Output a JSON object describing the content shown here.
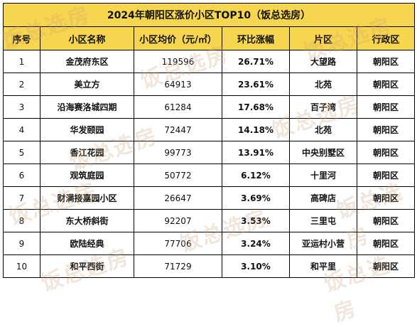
{
  "title": "2024年朝阳区涨价小区TOP10（饭总选房）",
  "headers": [
    "序号",
    "小区名称",
    "小区均价（元/㎡）",
    "环比涨幅",
    "片区",
    "行政区"
  ],
  "rows": [
    {
      "rank": "1",
      "name": "金茂府东区",
      "price": "119596",
      "change": "26.71%",
      "area": "大望路",
      "district": "朝阳区"
    },
    {
      "rank": "2",
      "name": "美立方",
      "price": "64913",
      "change": "23.61%",
      "area": "北苑",
      "district": "朝阳区"
    },
    {
      "rank": "3",
      "name": "沿海赛洛城四期",
      "price": "61284",
      "change": "17.68%",
      "area": "百子湾",
      "district": "朝阳区"
    },
    {
      "rank": "4",
      "name": "华发颐园",
      "price": "72447",
      "change": "14.18%",
      "area": "北苑",
      "district": "朝阳区"
    },
    {
      "rank": "5",
      "name": "香江花园",
      "price": "99773",
      "change": "13.91%",
      "area": "中央别墅区",
      "district": "朝阳区"
    },
    {
      "rank": "6",
      "name": "观筑庭园",
      "price": "50772",
      "change": "6.12%",
      "area": "十里河",
      "district": "朝阳区"
    },
    {
      "rank": "7",
      "name": "财满接嘉园小区",
      "price": "26647",
      "change": "3.69%",
      "area": "高碑店",
      "district": "朝阳区"
    },
    {
      "rank": "8",
      "name": "东大桥斜街",
      "price": "92207",
      "change": "3.53%",
      "area": "三里屯",
      "district": "朝阳区"
    },
    {
      "rank": "9",
      "name": "欧陆经典",
      "price": "77706",
      "change": "3.24%",
      "area": "亚运村小营",
      "district": "朝阳区"
    },
    {
      "rank": "10",
      "name": "和平西街",
      "price": "71729",
      "change": "3.10%",
      "area": "和平里",
      "district": "朝阳区"
    }
  ],
  "watermark_text": "饭总选房",
  "colors": {
    "header_bg": "#f6d64e",
    "border": "#000000",
    "watermark": "#d2a078"
  }
}
